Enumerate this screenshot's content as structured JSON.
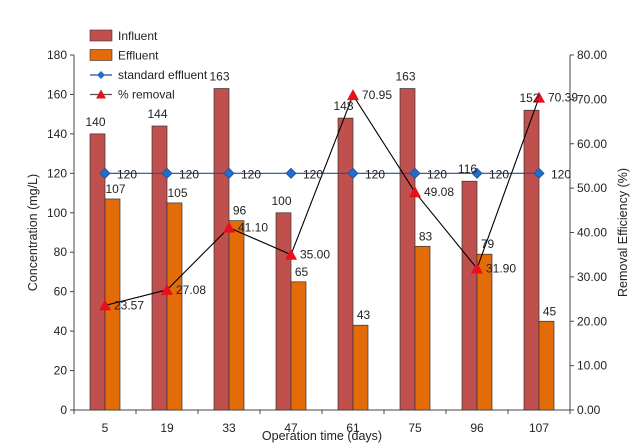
{
  "chart_data": {
    "type": "bar",
    "xlabel": "Operation time (days)",
    "ylabel": "Concentration (mg/L)",
    "y2label": "Removal Efficiency (%)",
    "categories": [
      "5",
      "19",
      "33",
      "47",
      "61",
      "75",
      "96",
      "107"
    ],
    "ylim": [
      0,
      180
    ],
    "y_ticks": [
      "0",
      "20",
      "40",
      "60",
      "80",
      "100",
      "120",
      "140",
      "160",
      "180"
    ],
    "y2lim": [
      0,
      80
    ],
    "y2_ticks": [
      "0.00",
      "10.00",
      "20.00",
      "30.00",
      "40.00",
      "50.00",
      "60.00",
      "70.00",
      "80.00"
    ],
    "grid": false,
    "legend_position": "top-left",
    "series": [
      {
        "name": "Influent",
        "kind": "bar",
        "axis": "left",
        "color": "#c0504d",
        "values": [
          140,
          144,
          163,
          100,
          148,
          163,
          116,
          152
        ],
        "labels": [
          "140",
          "144",
          "163",
          "100",
          "148",
          "163",
          "116",
          "152"
        ]
      },
      {
        "name": "Effluent",
        "kind": "bar",
        "axis": "left",
        "color": "#e36c09",
        "values": [
          107,
          105,
          96,
          65,
          43,
          83,
          79,
          45
        ],
        "labels": [
          "107",
          "105",
          "96",
          "65",
          "43",
          "83",
          "79",
          "45"
        ]
      },
      {
        "name": "standard effluent",
        "kind": "line",
        "marker": "diamond",
        "axis": "left",
        "color": "#1f4e9c",
        "values": [
          120,
          120,
          120,
          120,
          120,
          120,
          120,
          120
        ],
        "labels": [
          "120",
          "120",
          "120",
          "120",
          "120",
          "120",
          "120",
          "120"
        ]
      },
      {
        "name": "% removal",
        "kind": "line",
        "marker": "triangle",
        "axis": "right",
        "color": "#e8101c",
        "line_color": "#000000",
        "values": [
          23.57,
          27.08,
          41.1,
          35.0,
          70.95,
          49.08,
          31.9,
          70.39
        ],
        "labels": [
          "23.57",
          "27.08",
          "41.10",
          "35.00",
          "70.95",
          "49.08",
          "31.90",
          "70.39"
        ]
      }
    ]
  }
}
